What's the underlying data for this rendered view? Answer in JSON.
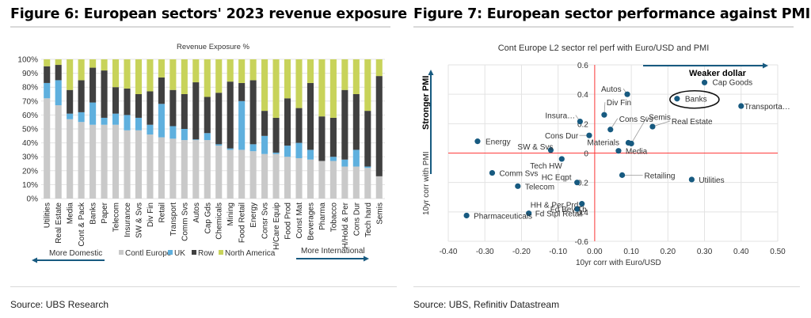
{
  "figures": {
    "left": {
      "title": "Figure 6: European sectors' 2023 revenue exposure",
      "source": "Source: UBS Research",
      "annotation_left": "More Domestic",
      "annotation_right": "More International"
    },
    "right": {
      "title": "Figure 7: European sector performance against PMI",
      "source": "Source: UBS, Refinitiv Datastream",
      "annotation_x_arrow": "Weaker dollar",
      "annotation_y_arrow": "Stronger PMI",
      "highlighted_point": "Banks"
    }
  },
  "colors": {
    "contl_europe": "#c9c9c9",
    "uk": "#5fb0de",
    "row": "#404040",
    "north_america": "#c8d35a",
    "scatter_point": "#175a80",
    "zero_line": "#ff3b3b",
    "arrow": "#175a80"
  },
  "chart_data": [
    {
      "type": "bar",
      "stacked": true,
      "title": "Revenue Exposure %",
      "xlabel": "",
      "ylabel": "",
      "ylim": [
        0,
        100
      ],
      "yticks": [
        "0%",
        "10%",
        "20%",
        "30%",
        "40%",
        "50%",
        "60%",
        "70%",
        "80%",
        "90%",
        "100%"
      ],
      "grid": true,
      "legend_position": "bottom",
      "categories": [
        "Utilities",
        "Real Estate",
        "Media",
        "Cont & Pack",
        "Banks",
        "Paper",
        "Telecom",
        "Insurance",
        "SW & Svs",
        "Div Fin",
        "Retail",
        "Transport",
        "Comm Svs",
        "Autos",
        "Cap Gds",
        "Chemicals",
        "Mining",
        "Food Retail",
        "Energy",
        "Consr Svs",
        "H/Care Equip",
        "Food Prod",
        "Const Mat",
        "Beverages",
        "Pharma",
        "Tobacco",
        "H/Hold & Per",
        "Cons Dur",
        "Tech hard",
        "Semis"
      ],
      "series": [
        {
          "name": "Contl Europe",
          "values": [
            72,
            67,
            57,
            55,
            53,
            53,
            53,
            49,
            49,
            46,
            44,
            43,
            42,
            42,
            42,
            38,
            35,
            35,
            34,
            32,
            32,
            30,
            29,
            28,
            27,
            27,
            23,
            23,
            22,
            16
          ]
        },
        {
          "name": "UK",
          "values": [
            11,
            18,
            4,
            7,
            16,
            5,
            8,
            11,
            9,
            7,
            24,
            9,
            8,
            0.5,
            5,
            1,
            1,
            35,
            5,
            13,
            1,
            8,
            11,
            7,
            0,
            3,
            5,
            12,
            1,
            0
          ]
        },
        {
          "name": "Row",
          "values": [
            12,
            11,
            17,
            23,
            25,
            34,
            19,
            19,
            17,
            24,
            19,
            26,
            25,
            41,
            26,
            37,
            48,
            13,
            46,
            18,
            25,
            34,
            25,
            48,
            32,
            28,
            50,
            40,
            40,
            72
          ]
        },
        {
          "name": "North America",
          "values": [
            5,
            4,
            22,
            15,
            6,
            8,
            20,
            21,
            25,
            23,
            13,
            22,
            25,
            16.5,
            27,
            24,
            16,
            17,
            15,
            37,
            42,
            28,
            35,
            17,
            41,
            42,
            22,
            25,
            37,
            12
          ]
        }
      ]
    },
    {
      "type": "scatter",
      "title": "Cont Europe L2 sector rel perf with  Euro/USD and PMI",
      "xlabel": "10yr corr with Euro/USD",
      "ylabel": "10yr corr with PMI",
      "xlim": [
        -0.4,
        0.5
      ],
      "ylim": [
        -0.6,
        0.6
      ],
      "xticks": [
        "-0.40",
        "-0.30",
        "-0.20",
        "-0.10",
        "0.00",
        "0.10",
        "0.20",
        "0.30",
        "0.40",
        "0.50"
      ],
      "yticks": [
        "-0.6",
        "-0.4",
        "-0.2",
        "0",
        "0.2",
        "0.4",
        "0.6"
      ],
      "grid": true,
      "points": [
        {
          "label": "Autos",
          "x": 0.089,
          "y": 0.4
        },
        {
          "label": "Cap Goods",
          "x": 0.3,
          "y": 0.48
        },
        {
          "label": "Banks",
          "x": 0.225,
          "y": 0.37
        },
        {
          "label": "Transporta…",
          "x": 0.4,
          "y": 0.32
        },
        {
          "label": "Div Fin",
          "x": 0.026,
          "y": 0.26
        },
        {
          "label": "Cons Svs",
          "x": 0.043,
          "y": 0.16
        },
        {
          "label": "Semis",
          "x": 0.1,
          "y": 0.065
        },
        {
          "label": "Real Estate",
          "x": 0.158,
          "y": 0.18
        },
        {
          "label": "Materials",
          "x": 0.092,
          "y": 0.07
        },
        {
          "label": "Media",
          "x": 0.065,
          "y": 0.015
        },
        {
          "label": "Insura…",
          "x": -0.04,
          "y": 0.215
        },
        {
          "label": "Cons Dur",
          "x": -0.015,
          "y": 0.12
        },
        {
          "label": "Energy",
          "x": -0.32,
          "y": 0.08
        },
        {
          "label": "SW & Svs",
          "x": -0.12,
          "y": 0.02
        },
        {
          "label": "Tech HW",
          "x": -0.09,
          "y": -0.04
        },
        {
          "label": "Comm Svs",
          "x": -0.28,
          "y": -0.135
        },
        {
          "label": "HC Eqpt",
          "x": -0.048,
          "y": -0.2
        },
        {
          "label": "Telecom",
          "x": -0.21,
          "y": -0.225
        },
        {
          "label": "Retailing",
          "x": 0.075,
          "y": -0.15
        },
        {
          "label": "Utilities",
          "x": 0.265,
          "y": -0.18
        },
        {
          "label": "HH & Per Prd",
          "x": -0.035,
          "y": -0.345
        },
        {
          "label": "Fd Bev Tb",
          "x": -0.048,
          "y": -0.38
        },
        {
          "label": "Fd Stpl Retail",
          "x": -0.18,
          "y": -0.41
        },
        {
          "label": "Pharmaceuticals",
          "x": -0.35,
          "y": -0.425
        }
      ]
    }
  ]
}
